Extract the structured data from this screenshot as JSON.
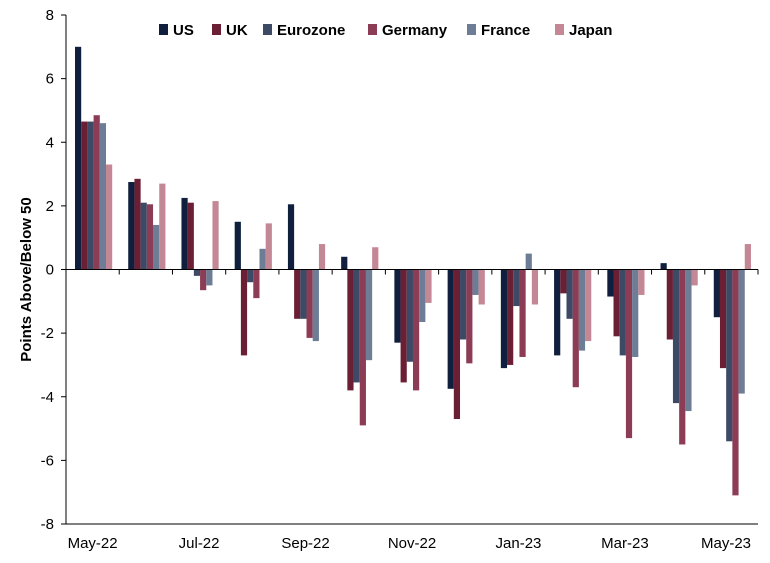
{
  "chart_data": {
    "type": "bar",
    "title": "",
    "xlabel": "",
    "ylabel": "Points Above/Below 50",
    "ylim": [
      -8,
      8
    ],
    "yticks": [
      -8,
      -6,
      -4,
      -2,
      0,
      2,
      4,
      6,
      8
    ],
    "grid": false,
    "legend_position": "top",
    "categories": [
      "May-22",
      "Jun-22",
      "Jul-22",
      "Aug-22",
      "Sep-22",
      "Oct-22",
      "Nov-22",
      "Dec-22",
      "Jan-23",
      "Feb-23",
      "Mar-23",
      "Apr-23",
      "May-23"
    ],
    "xtick_labels": [
      "May-22",
      "Jul-22",
      "Sep-22",
      "Nov-22",
      "Jan-23",
      "Mar-23",
      "May-23"
    ],
    "series": [
      {
        "name": "US",
        "color": "#0f1f3d",
        "values": [
          7.0,
          2.75,
          2.25,
          1.5,
          2.05,
          0.4,
          -2.3,
          -3.75,
          -3.1,
          -2.7,
          -0.85,
          0.2,
          -1.5
        ]
      },
      {
        "name": "UK",
        "color": "#6b1f35",
        "values": [
          4.65,
          2.85,
          2.1,
          -2.7,
          -1.55,
          -3.8,
          -3.55,
          -4.7,
          -3.0,
          -0.75,
          -2.1,
          -2.2,
          -3.1
        ]
      },
      {
        "name": "Eurozone",
        "color": "#3d4a66",
        "values": [
          4.65,
          2.1,
          -0.2,
          -0.4,
          -1.55,
          -3.55,
          -2.9,
          -2.2,
          -1.15,
          -1.55,
          -2.7,
          -4.2,
          -5.4
        ]
      },
      {
        "name": "Germany",
        "color": "#8c3d55",
        "values": [
          4.85,
          2.05,
          -0.65,
          -0.9,
          -2.15,
          -4.9,
          -3.8,
          -2.95,
          -2.75,
          -3.7,
          -5.3,
          -5.5,
          -7.1
        ]
      },
      {
        "name": "France",
        "color": "#6e7d96",
        "values": [
          4.6,
          1.4,
          -0.5,
          0.65,
          -2.25,
          -2.85,
          -1.65,
          -0.8,
          0.5,
          -2.55,
          -2.75,
          -4.45,
          -3.9
        ]
      },
      {
        "name": "Japan",
        "color": "#c48795",
        "values": [
          3.3,
          2.7,
          2.15,
          1.45,
          0.8,
          0.7,
          -1.05,
          -1.1,
          -1.1,
          -2.25,
          -0.8,
          -0.5,
          0.8
        ]
      }
    ]
  }
}
